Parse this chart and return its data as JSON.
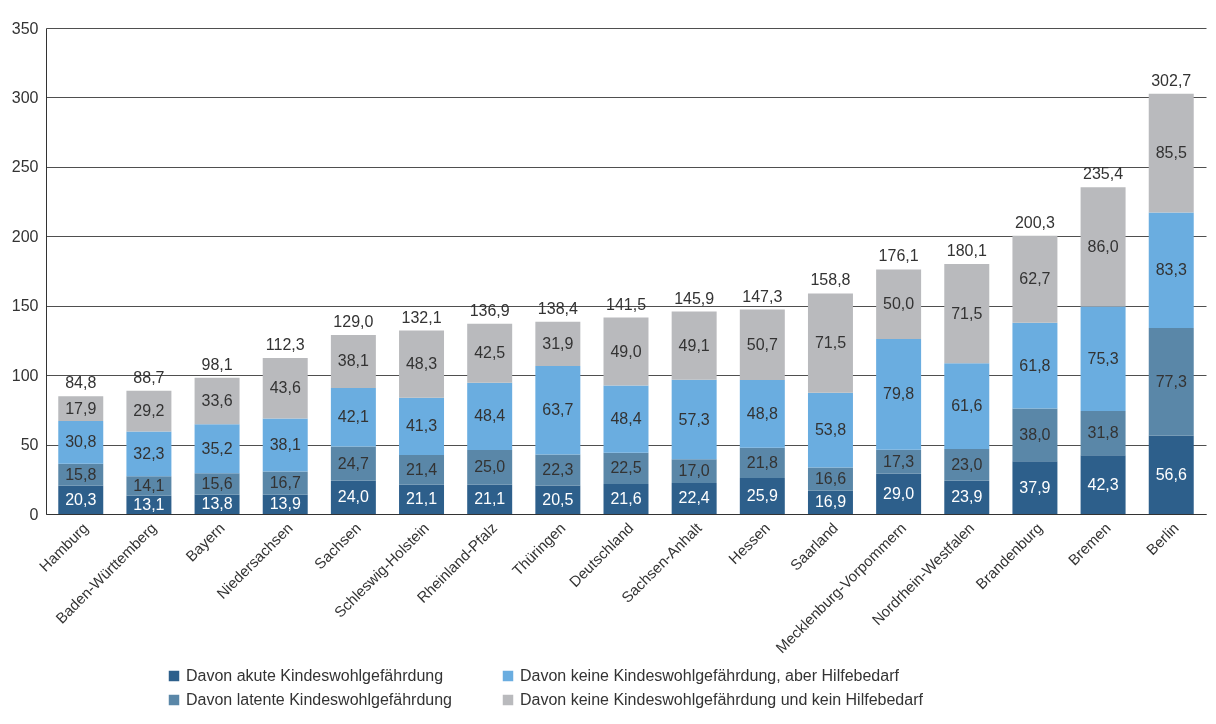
{
  "chart_data": {
    "type": "bar",
    "stacked": true,
    "categories": [
      "Hamburg",
      "Baden-Württemberg",
      "Bayern",
      "Niedersachsen",
      "Sachsen",
      "Schleswig-Holstein",
      "Rheinland-Pfalz",
      "Thüringen",
      "Deutschland",
      "Sachsen-Anhalt",
      "Hessen",
      "Saarland",
      "Mecklenburg-Vorpommern",
      "Nordrhein-Westfalen",
      "Brandenburg",
      "Bremen",
      "Berlin"
    ],
    "series": [
      {
        "name": "Davon akute Kindeswohlgefährdung",
        "color": "#2d5f8b",
        "values": [
          20.3,
          13.1,
          13.8,
          13.9,
          24.0,
          21.1,
          21.1,
          20.5,
          21.6,
          22.4,
          25.9,
          16.9,
          29.0,
          23.9,
          37.9,
          42.3,
          56.6
        ],
        "value_labels": [
          "20,3",
          "13,1",
          "13,8",
          "13,9",
          "24,0",
          "21,1",
          "21,1",
          "20,5",
          "21,6",
          "22,4",
          "25,9",
          "16,9",
          "29,0",
          "23,9",
          "37,9",
          "42,3",
          "56,6"
        ]
      },
      {
        "name": "Davon latente Kindeswohlgefährdung",
        "color": "#5a87a8",
        "values": [
          15.8,
          14.1,
          15.6,
          16.7,
          24.7,
          21.4,
          25.0,
          22.3,
          22.5,
          17.0,
          21.8,
          16.6,
          17.3,
          23.0,
          38.0,
          31.8,
          77.3
        ],
        "value_labels": [
          "15,8",
          "14,1",
          "15,6",
          "16,7",
          "24,7",
          "21,4",
          "25,0",
          "22,3",
          "22,5",
          "17,0",
          "21,8",
          "16,6",
          "17,3",
          "23,0",
          "38,0",
          "31,8",
          "77,3"
        ]
      },
      {
        "name": "Davon keine Kindeswohlgefährdung, aber Hilfebedarf",
        "color": "#6aade0",
        "values": [
          30.8,
          32.3,
          35.2,
          38.1,
          42.1,
          41.3,
          48.4,
          63.7,
          48.4,
          57.3,
          48.8,
          53.8,
          79.8,
          61.6,
          61.8,
          75.3,
          83.3
        ],
        "value_labels": [
          "30,8",
          "32,3",
          "35,2",
          "38,1",
          "42,1",
          "41,3",
          "48,4",
          "63,7",
          "48,4",
          "57,3",
          "48,8",
          "53,8",
          "79,8",
          "61,6",
          "61,8",
          "75,3",
          "83,3"
        ]
      },
      {
        "name": "Davon keine Kindeswohlgefährdung und kein Hilfebedarf",
        "color": "#b9babd",
        "values": [
          17.9,
          29.2,
          33.6,
          43.6,
          38.1,
          48.3,
          42.5,
          31.9,
          49.0,
          49.1,
          50.7,
          71.5,
          50.0,
          71.5,
          62.7,
          86.0,
          85.5
        ],
        "value_labels": [
          "17,9",
          "29,2",
          "33,6",
          "43,6",
          "38,1",
          "48,3",
          "42,5",
          "31,9",
          "49,0",
          "49,1",
          "50,7",
          "71,5",
          "50,0",
          "71,5",
          "62,7",
          "86,0",
          "85,5"
        ]
      }
    ],
    "totals": [
      "84,8",
      "88,7",
      "98,1",
      "112,3",
      "129,0",
      "132,1",
      "136,9",
      "138,4",
      "141,5",
      "145,9",
      "147,3",
      "158,8",
      "176,1",
      "180,1",
      "200,3",
      "235,4",
      "302,7"
    ],
    "ylim": [
      0,
      350
    ],
    "yticks": [
      0,
      50,
      100,
      150,
      200,
      250,
      300,
      350
    ],
    "grid": "y",
    "legend": "bottom"
  }
}
